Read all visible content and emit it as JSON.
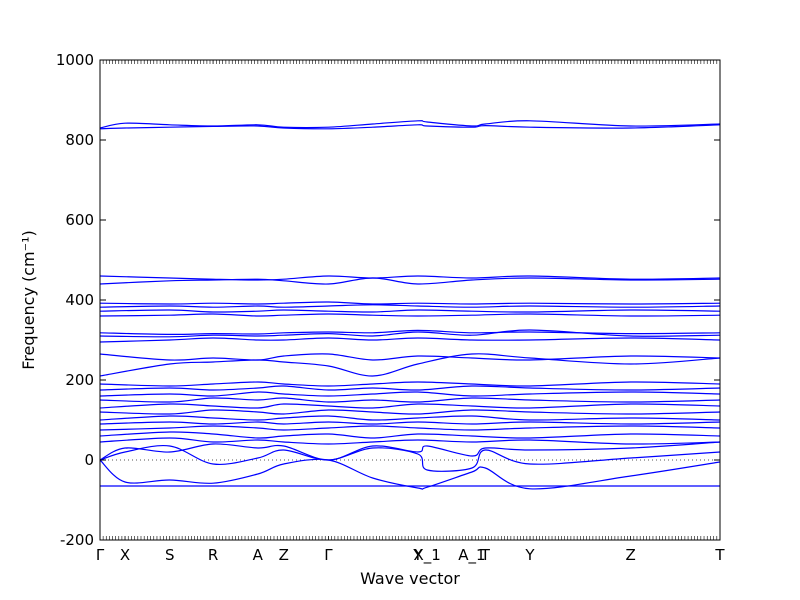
{
  "chart_data": {
    "type": "line",
    "title": "",
    "xlabel": "Wave vector",
    "ylabel": "Frequency (cm⁻¹)",
    "ylim": [
      -200,
      1000
    ],
    "yticks": [
      -200,
      0,
      200,
      400,
      600,
      800,
      1000
    ],
    "zero_line": "dotted",
    "grid": false,
    "legend": "none",
    "line_color": "#0000ff",
    "x_path": [
      "Γ",
      "X",
      "S",
      "R",
      "A",
      "Z",
      "Γ",
      "Y",
      "X_1",
      "A_1",
      "T",
      "Y",
      "Z",
      "T"
    ],
    "x_tick_positions": [
      0,
      0.56,
      1.56,
      2.53,
      3.53,
      4.11,
      5.11,
      7.11,
      7.32,
      8.32,
      8.62,
      9.62,
      11.87,
      13.87
    ],
    "xlim": [
      0,
      13.87
    ],
    "series": [
      {
        "x": [
          0,
          4.11,
          5.11,
          7.11,
          9.62,
          13.87
        ],
        "y": [
          -65,
          -65,
          -65,
          -65,
          -65,
          -65
        ]
      },
      {
        "x": [
          0,
          0.56,
          1.56,
          2.53,
          3.53,
          4.11,
          5.11,
          6.1,
          7.11,
          7.32,
          8.32,
          8.62,
          9.62,
          11.87,
          13.87
        ],
        "y": [
          0,
          -55,
          -50,
          -58,
          -35,
          -10,
          0,
          -45,
          -70,
          -68,
          -30,
          -20,
          -72,
          -40,
          -5
        ]
      },
      {
        "x": [
          0,
          0.56,
          1.56,
          2.53,
          3.53,
          4.11,
          5.11,
          6.1,
          7.11,
          7.32,
          8.32,
          8.62,
          9.62,
          11.87,
          13.87
        ],
        "y": [
          0,
          20,
          35,
          -10,
          5,
          25,
          0,
          30,
          15,
          -25,
          -20,
          25,
          -10,
          5,
          20
        ]
      },
      {
        "x": [
          0,
          0.56,
          1.56,
          2.53,
          3.53,
          4.11,
          5.11,
          6.1,
          7.11,
          7.32,
          8.32,
          8.62,
          9.62,
          11.87,
          13.87
        ],
        "y": [
          0,
          30,
          20,
          40,
          30,
          35,
          0,
          35,
          20,
          35,
          10,
          30,
          25,
          30,
          45
        ]
      },
      {
        "x": [
          0,
          1.56,
          2.53,
          3.53,
          4.11,
          5.11,
          6.1,
          7.11,
          8.32,
          9.62,
          11.87,
          13.87
        ],
        "y": [
          45,
          55,
          45,
          50,
          45,
          40,
          45,
          50,
          45,
          50,
          40,
          45
        ]
      },
      {
        "x": [
          0,
          1.56,
          2.53,
          3.53,
          4.11,
          5.11,
          6.1,
          7.11,
          8.32,
          9.62,
          11.87,
          13.87
        ],
        "y": [
          60,
          70,
          65,
          55,
          60,
          65,
          55,
          65,
          60,
          55,
          65,
          60
        ]
      },
      {
        "x": [
          0,
          1.56,
          2.53,
          3.53,
          4.11,
          5.11,
          6.1,
          7.11,
          8.32,
          9.62,
          11.87,
          13.87
        ],
        "y": [
          75,
          80,
          85,
          80,
          75,
          80,
          85,
          80,
          75,
          80,
          85,
          80
        ]
      },
      {
        "x": [
          0,
          1.56,
          2.53,
          3.53,
          4.11,
          5.11,
          6.1,
          7.11,
          8.32,
          9.62,
          11.87,
          13.87
        ],
        "y": [
          90,
          95,
          90,
          95,
          90,
          95,
          90,
          95,
          90,
          95,
          90,
          95
        ]
      },
      {
        "x": [
          0,
          1.56,
          2.53,
          3.53,
          4.11,
          5.11,
          6.1,
          7.11,
          8.32,
          9.62,
          11.87,
          13.87
        ],
        "y": [
          100,
          110,
          105,
          100,
          105,
          110,
          100,
          105,
          110,
          100,
          105,
          100
        ]
      },
      {
        "x": [
          0,
          1.56,
          2.53,
          3.53,
          4.11,
          5.11,
          6.1,
          7.11,
          8.32,
          9.62,
          11.87,
          13.87
        ],
        "y": [
          120,
          115,
          125,
          120,
          115,
          125,
          120,
          115,
          125,
          120,
          115,
          120
        ]
      },
      {
        "x": [
          0,
          1.56,
          2.53,
          3.53,
          4.11,
          5.11,
          6.1,
          7.11,
          8.32,
          9.62,
          11.87,
          13.87
        ],
        "y": [
          130,
          140,
          135,
          130,
          140,
          135,
          130,
          140,
          135,
          130,
          140,
          135
        ]
      },
      {
        "x": [
          0,
          1.56,
          2.53,
          3.53,
          4.11,
          5.11,
          6.1,
          7.11,
          8.32,
          9.62,
          11.87,
          13.87
        ],
        "y": [
          150,
          145,
          155,
          150,
          155,
          145,
          150,
          145,
          155,
          150,
          145,
          150
        ]
      },
      {
        "x": [
          0,
          1.56,
          2.53,
          3.53,
          4.11,
          5.11,
          6.1,
          7.11,
          8.32,
          9.62,
          11.87,
          13.87
        ],
        "y": [
          160,
          165,
          160,
          170,
          165,
          160,
          165,
          170,
          160,
          165,
          170,
          165
        ]
      },
      {
        "x": [
          0,
          1.56,
          2.53,
          3.53,
          4.11,
          5.11,
          6.1,
          7.11,
          8.32,
          9.62,
          11.87,
          13.87
        ],
        "y": [
          175,
          180,
          175,
          180,
          185,
          175,
          180,
          175,
          185,
          180,
          175,
          180
        ]
      },
      {
        "x": [
          0,
          1.56,
          2.53,
          3.53,
          4.11,
          5.11,
          6.1,
          7.11,
          8.32,
          9.62,
          11.87,
          13.87
        ],
        "y": [
          190,
          185,
          190,
          195,
          190,
          185,
          190,
          195,
          190,
          185,
          195,
          190
        ]
      },
      {
        "x": [
          0,
          1.56,
          2.53,
          3.53,
          4.11,
          5.11,
          6.1,
          7.11,
          8.32,
          9.62,
          11.87,
          13.87
        ],
        "y": [
          210,
          240,
          245,
          250,
          245,
          235,
          210,
          240,
          265,
          255,
          240,
          255
        ]
      },
      {
        "x": [
          0,
          1.56,
          2.53,
          3.53,
          4.11,
          5.11,
          6.1,
          7.11,
          8.32,
          9.62,
          11.87,
          13.87
        ],
        "y": [
          265,
          250,
          255,
          250,
          260,
          265,
          250,
          260,
          255,
          250,
          260,
          255
        ]
      },
      {
        "x": [
          0,
          1.56,
          2.53,
          3.53,
          4.11,
          5.11,
          6.1,
          7.11,
          8.32,
          9.62,
          11.87,
          13.87
        ],
        "y": [
          295,
          300,
          305,
          300,
          300,
          305,
          300,
          305,
          300,
          300,
          305,
          300
        ]
      },
      {
        "x": [
          0,
          1.56,
          2.53,
          3.53,
          4.11,
          5.11,
          6.1,
          7.11,
          8.32,
          9.62,
          11.87,
          13.87
        ],
        "y": [
          310,
          308,
          312,
          310,
          312,
          316,
          310,
          320,
          312,
          325,
          310,
          312
        ]
      },
      {
        "x": [
          0,
          1.56,
          2.53,
          3.53,
          4.11,
          5.11,
          6.1,
          7.11,
          8.32,
          9.62,
          11.87,
          13.87
        ],
        "y": [
          318,
          314,
          316,
          315,
          318,
          320,
          318,
          324,
          318,
          320,
          316,
          318
        ]
      },
      {
        "x": [
          0,
          1.56,
          2.53,
          3.53,
          4.11,
          5.11,
          6.1,
          7.11,
          8.32,
          9.62,
          11.87,
          13.87
        ],
        "y": [
          360,
          362,
          365,
          360,
          362,
          365,
          362,
          360,
          362,
          365,
          360,
          362
        ]
      },
      {
        "x": [
          0,
          1.56,
          2.53,
          3.53,
          4.11,
          5.11,
          6.1,
          7.11,
          8.32,
          9.62,
          11.87,
          13.87
        ],
        "y": [
          372,
          375,
          370,
          372,
          375,
          372,
          370,
          375,
          372,
          370,
          375,
          372
        ]
      },
      {
        "x": [
          0,
          1.56,
          2.53,
          3.53,
          4.11,
          5.11,
          6.1,
          7.11,
          8.32,
          9.62,
          11.87,
          13.87
        ],
        "y": [
          382,
          385,
          382,
          385,
          382,
          385,
          388,
          385,
          382,
          385,
          382,
          385
        ]
      },
      {
        "x": [
          0,
          1.56,
          2.53,
          3.53,
          4.11,
          5.11,
          6.1,
          7.11,
          8.32,
          9.62,
          11.87,
          13.87
        ],
        "y": [
          392,
          390,
          392,
          390,
          392,
          395,
          390,
          392,
          390,
          392,
          390,
          392
        ]
      },
      {
        "x": [
          0,
          1.56,
          2.53,
          3.53,
          4.11,
          5.11,
          6.1,
          7.11,
          8.32,
          9.62,
          11.87,
          13.87
        ],
        "y": [
          440,
          448,
          450,
          452,
          448,
          440,
          455,
          440,
          450,
          455,
          450,
          452
        ]
      },
      {
        "x": [
          0,
          1.56,
          2.53,
          3.53,
          4.11,
          5.11,
          6.1,
          7.11,
          8.32,
          9.62,
          11.87,
          13.87
        ],
        "y": [
          460,
          455,
          452,
          450,
          452,
          460,
          455,
          460,
          455,
          460,
          452,
          455
        ]
      },
      {
        "x": [
          0,
          0.56,
          1.56,
          2.53,
          3.53,
          4.11,
          5.11,
          6.1,
          7.11,
          7.32,
          8.32,
          8.62,
          9.62,
          11.87,
          13.87
        ],
        "y": [
          828,
          830,
          832,
          834,
          835,
          830,
          828,
          832,
          838,
          835,
          832,
          836,
          832,
          830,
          838
        ]
      },
      {
        "x": [
          0,
          0.56,
          1.56,
          2.53,
          3.53,
          4.11,
          5.11,
          6.1,
          7.11,
          7.32,
          8.32,
          8.62,
          9.62,
          11.87,
          13.87
        ],
        "y": [
          830,
          842,
          838,
          835,
          838,
          832,
          832,
          840,
          848,
          845,
          835,
          840,
          848,
          835,
          840
        ]
      }
    ]
  }
}
